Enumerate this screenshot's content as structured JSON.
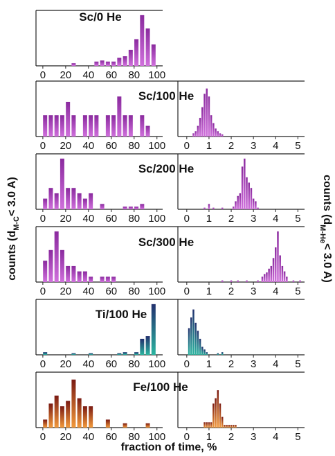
{
  "figure": {
    "xlabel": "fraction of time, %",
    "ylabel_left": {
      "prefix": "counts (d",
      "sub": "M-C",
      "suffix": "< 3.0 A)"
    },
    "ylabel_right": {
      "prefix": "counts (d",
      "sub": "M-He",
      "suffix": "< 3.0 A)"
    }
  },
  "chart_data": [
    {
      "type": "bar",
      "title": "Sc/0 He",
      "colors": [
        "#8a2a9e",
        "#d070dc"
      ],
      "x": [
        2,
        7,
        12,
        17,
        22,
        27,
        32,
        37,
        42,
        47,
        52,
        57,
        62,
        67,
        72,
        77,
        82,
        87,
        92,
        97
      ],
      "values": [
        0,
        0,
        0,
        0,
        0,
        0.5,
        0,
        0,
        0,
        0.8,
        1,
        0.8,
        0.8,
        1.5,
        1.8,
        3,
        5,
        9.5,
        7,
        4
      ],
      "xlim": [
        -6,
        105
      ],
      "xticks": [
        0,
        20,
        40,
        60,
        80,
        100
      ],
      "ylim": [
        0,
        10
      ]
    },
    {
      "type": "bar",
      "title": "Sc/100 He",
      "colors": [
        "#8a2a9e",
        "#d070dc"
      ],
      "x": [
        2,
        7,
        12,
        17,
        22,
        27,
        32,
        37,
        42,
        47,
        52,
        57,
        62,
        67,
        72,
        77,
        82,
        87,
        92,
        97
      ],
      "values": [
        4,
        4,
        4,
        4,
        6.5,
        4,
        0,
        4,
        4,
        4,
        0,
        4,
        4,
        7.5,
        4,
        4,
        0,
        4,
        2,
        0
      ],
      "xlim": [
        -6,
        105
      ],
      "xticks": [
        0,
        20,
        40,
        60,
        80,
        100
      ],
      "ylim": [
        0,
        10
      ]
    },
    {
      "type": "bar",
      "colors": [
        "#8a2a9e",
        "#d070dc"
      ],
      "x": [
        0.3,
        0.4,
        0.5,
        0.6,
        0.7,
        0.8,
        0.9,
        1.0,
        1.1,
        1.2,
        1.3,
        1.4,
        1.5,
        1.6
      ],
      "values": [
        0.6,
        1,
        2,
        3.5,
        5.5,
        8,
        9,
        7.5,
        4,
        2.5,
        1.5,
        1,
        0.6,
        0.4
      ],
      "xlim": [
        -0.4,
        5.3
      ],
      "xticks": [
        0,
        1,
        2,
        3,
        4,
        5
      ],
      "ylim": [
        0,
        10
      ]
    },
    {
      "type": "bar",
      "title": "Sc/200 He",
      "colors": [
        "#8a2a9e",
        "#d070dc"
      ],
      "x": [
        2,
        7,
        12,
        17,
        22,
        27,
        32,
        37,
        42,
        47,
        52,
        57,
        62,
        67,
        72,
        77,
        82,
        87,
        92,
        97
      ],
      "values": [
        2,
        4,
        3,
        9.5,
        4,
        4,
        3,
        2,
        3,
        0,
        1,
        0,
        0,
        0,
        0.5,
        0.5,
        0.5,
        1,
        0,
        0
      ],
      "xlim": [
        -6,
        105
      ],
      "xticks": [
        0,
        20,
        40,
        60,
        80,
        100
      ],
      "ylim": [
        0,
        10
      ]
    },
    {
      "type": "bar",
      "colors": [
        "#8a2a9e",
        "#d070dc"
      ],
      "x": [
        0.8,
        1.0,
        1.2,
        1.6,
        2.1,
        2.2,
        2.3,
        2.4,
        2.5,
        2.6,
        2.7,
        2.8,
        2.9,
        3.0,
        3.1,
        3.2
      ],
      "values": [
        0.3,
        1,
        0.3,
        0.3,
        0.5,
        1.5,
        2.5,
        3,
        8,
        9.5,
        6,
        5,
        4,
        2,
        1.5,
        0.3
      ],
      "xlim": [
        -0.4,
        5.3
      ],
      "xticks": [
        0,
        1,
        2,
        3,
        4,
        5
      ],
      "ylim": [
        0,
        10
      ]
    },
    {
      "type": "bar",
      "title": "Sc/300 He",
      "colors": [
        "#8a2a9e",
        "#d070dc"
      ],
      "x": [
        2,
        7,
        12,
        17,
        22,
        27,
        32,
        37,
        42,
        47,
        52,
        57,
        62,
        67,
        72,
        77,
        82,
        87,
        92,
        97
      ],
      "values": [
        4,
        6,
        9.5,
        6,
        3,
        3,
        2,
        2,
        1,
        0,
        1,
        1,
        1,
        0,
        0,
        0,
        0,
        0,
        0,
        0
      ],
      "xlim": [
        -6,
        105
      ],
      "xticks": [
        0,
        20,
        40,
        60,
        80,
        100
      ],
      "ylim": [
        0,
        10
      ]
    },
    {
      "type": "bar",
      "colors": [
        "#8a2a9e",
        "#d070dc"
      ],
      "x": [
        1.6,
        2.0,
        2.3,
        2.7,
        3.2,
        3.4,
        3.5,
        3.6,
        3.7,
        3.8,
        3.9,
        4.0,
        4.1,
        4.2,
        4.3,
        4.4,
        4.5,
        4.8,
        5.1
      ],
      "values": [
        0.3,
        0.3,
        0.3,
        0.3,
        0.3,
        1,
        1.5,
        1.8,
        2.5,
        3,
        4.5,
        6.5,
        9.5,
        5,
        3,
        2,
        1,
        0.3,
        0.3
      ],
      "xlim": [
        -0.4,
        5.3
      ],
      "xticks": [
        0,
        1,
        2,
        3,
        4,
        5
      ],
      "ylim": [
        0,
        10
      ]
    },
    {
      "type": "bar",
      "title": "Ti/100 He",
      "colors": [
        "#22306e",
        "#2bb5a0"
      ],
      "x": [
        2,
        7,
        12,
        17,
        22,
        27,
        32,
        37,
        42,
        47,
        52,
        57,
        62,
        67,
        72,
        77,
        82,
        87,
        92,
        97
      ],
      "values": [
        0.5,
        0,
        0,
        0,
        0,
        0.3,
        0,
        0,
        0.3,
        0,
        0,
        0,
        0,
        0.3,
        0.5,
        0,
        0.5,
        3,
        3.5,
        9.5
      ],
      "xlim": [
        -6,
        105
      ],
      "xticks": [
        0,
        20,
        40,
        60,
        80,
        100
      ],
      "ylim": [
        0,
        10
      ]
    },
    {
      "type": "bar",
      "colors": [
        "#22306e",
        "#2bb5a0"
      ],
      "x": [
        0.1,
        0.2,
        0.3,
        0.4,
        0.5,
        0.6,
        0.7,
        0.8,
        0.9,
        1.4,
        1.6
      ],
      "values": [
        5,
        7,
        8.5,
        6,
        4.5,
        3,
        1.5,
        1,
        0.5,
        0.3,
        0.5
      ],
      "xlim": [
        -0.4,
        5.3
      ],
      "xticks": [
        0,
        1,
        2,
        3,
        4,
        5
      ],
      "ylim": [
        0,
        10
      ]
    },
    {
      "type": "bar",
      "title": "Fe/100 He",
      "colors": [
        "#7a1a12",
        "#f39a3c"
      ],
      "x": [
        2,
        7,
        12,
        17,
        22,
        27,
        32,
        37,
        42,
        47,
        52,
        57,
        62,
        67,
        72,
        77,
        82,
        87,
        92,
        97
      ],
      "values": [
        1.5,
        4.5,
        6,
        4,
        5,
        9,
        5.5,
        4,
        4,
        0,
        0,
        1.5,
        0,
        0,
        0.8,
        0,
        0,
        0,
        0.8,
        0
      ],
      "xlim": [
        -6,
        105
      ],
      "xticks": [
        0,
        20,
        40,
        60,
        80,
        100
      ],
      "ylim": [
        0,
        10
      ]
    },
    {
      "type": "bar",
      "colors": [
        "#7a1a12",
        "#f39a3c"
      ],
      "x": [
        0.8,
        0.9,
        1.0,
        1.1,
        1.2,
        1.3,
        1.4,
        1.5,
        1.6,
        1.7,
        1.8,
        1.9,
        2.0,
        2.1,
        2.2
      ],
      "values": [
        1,
        1,
        1,
        1,
        4.5,
        5.5,
        7,
        4.5,
        2,
        0.5,
        0.5,
        0.5,
        0.5,
        0.5,
        0.5
      ],
      "xlim": [
        -0.4,
        5.3
      ],
      "xticks": [
        0,
        1,
        2,
        3,
        4,
        5
      ],
      "ylim": [
        0,
        10
      ]
    }
  ]
}
